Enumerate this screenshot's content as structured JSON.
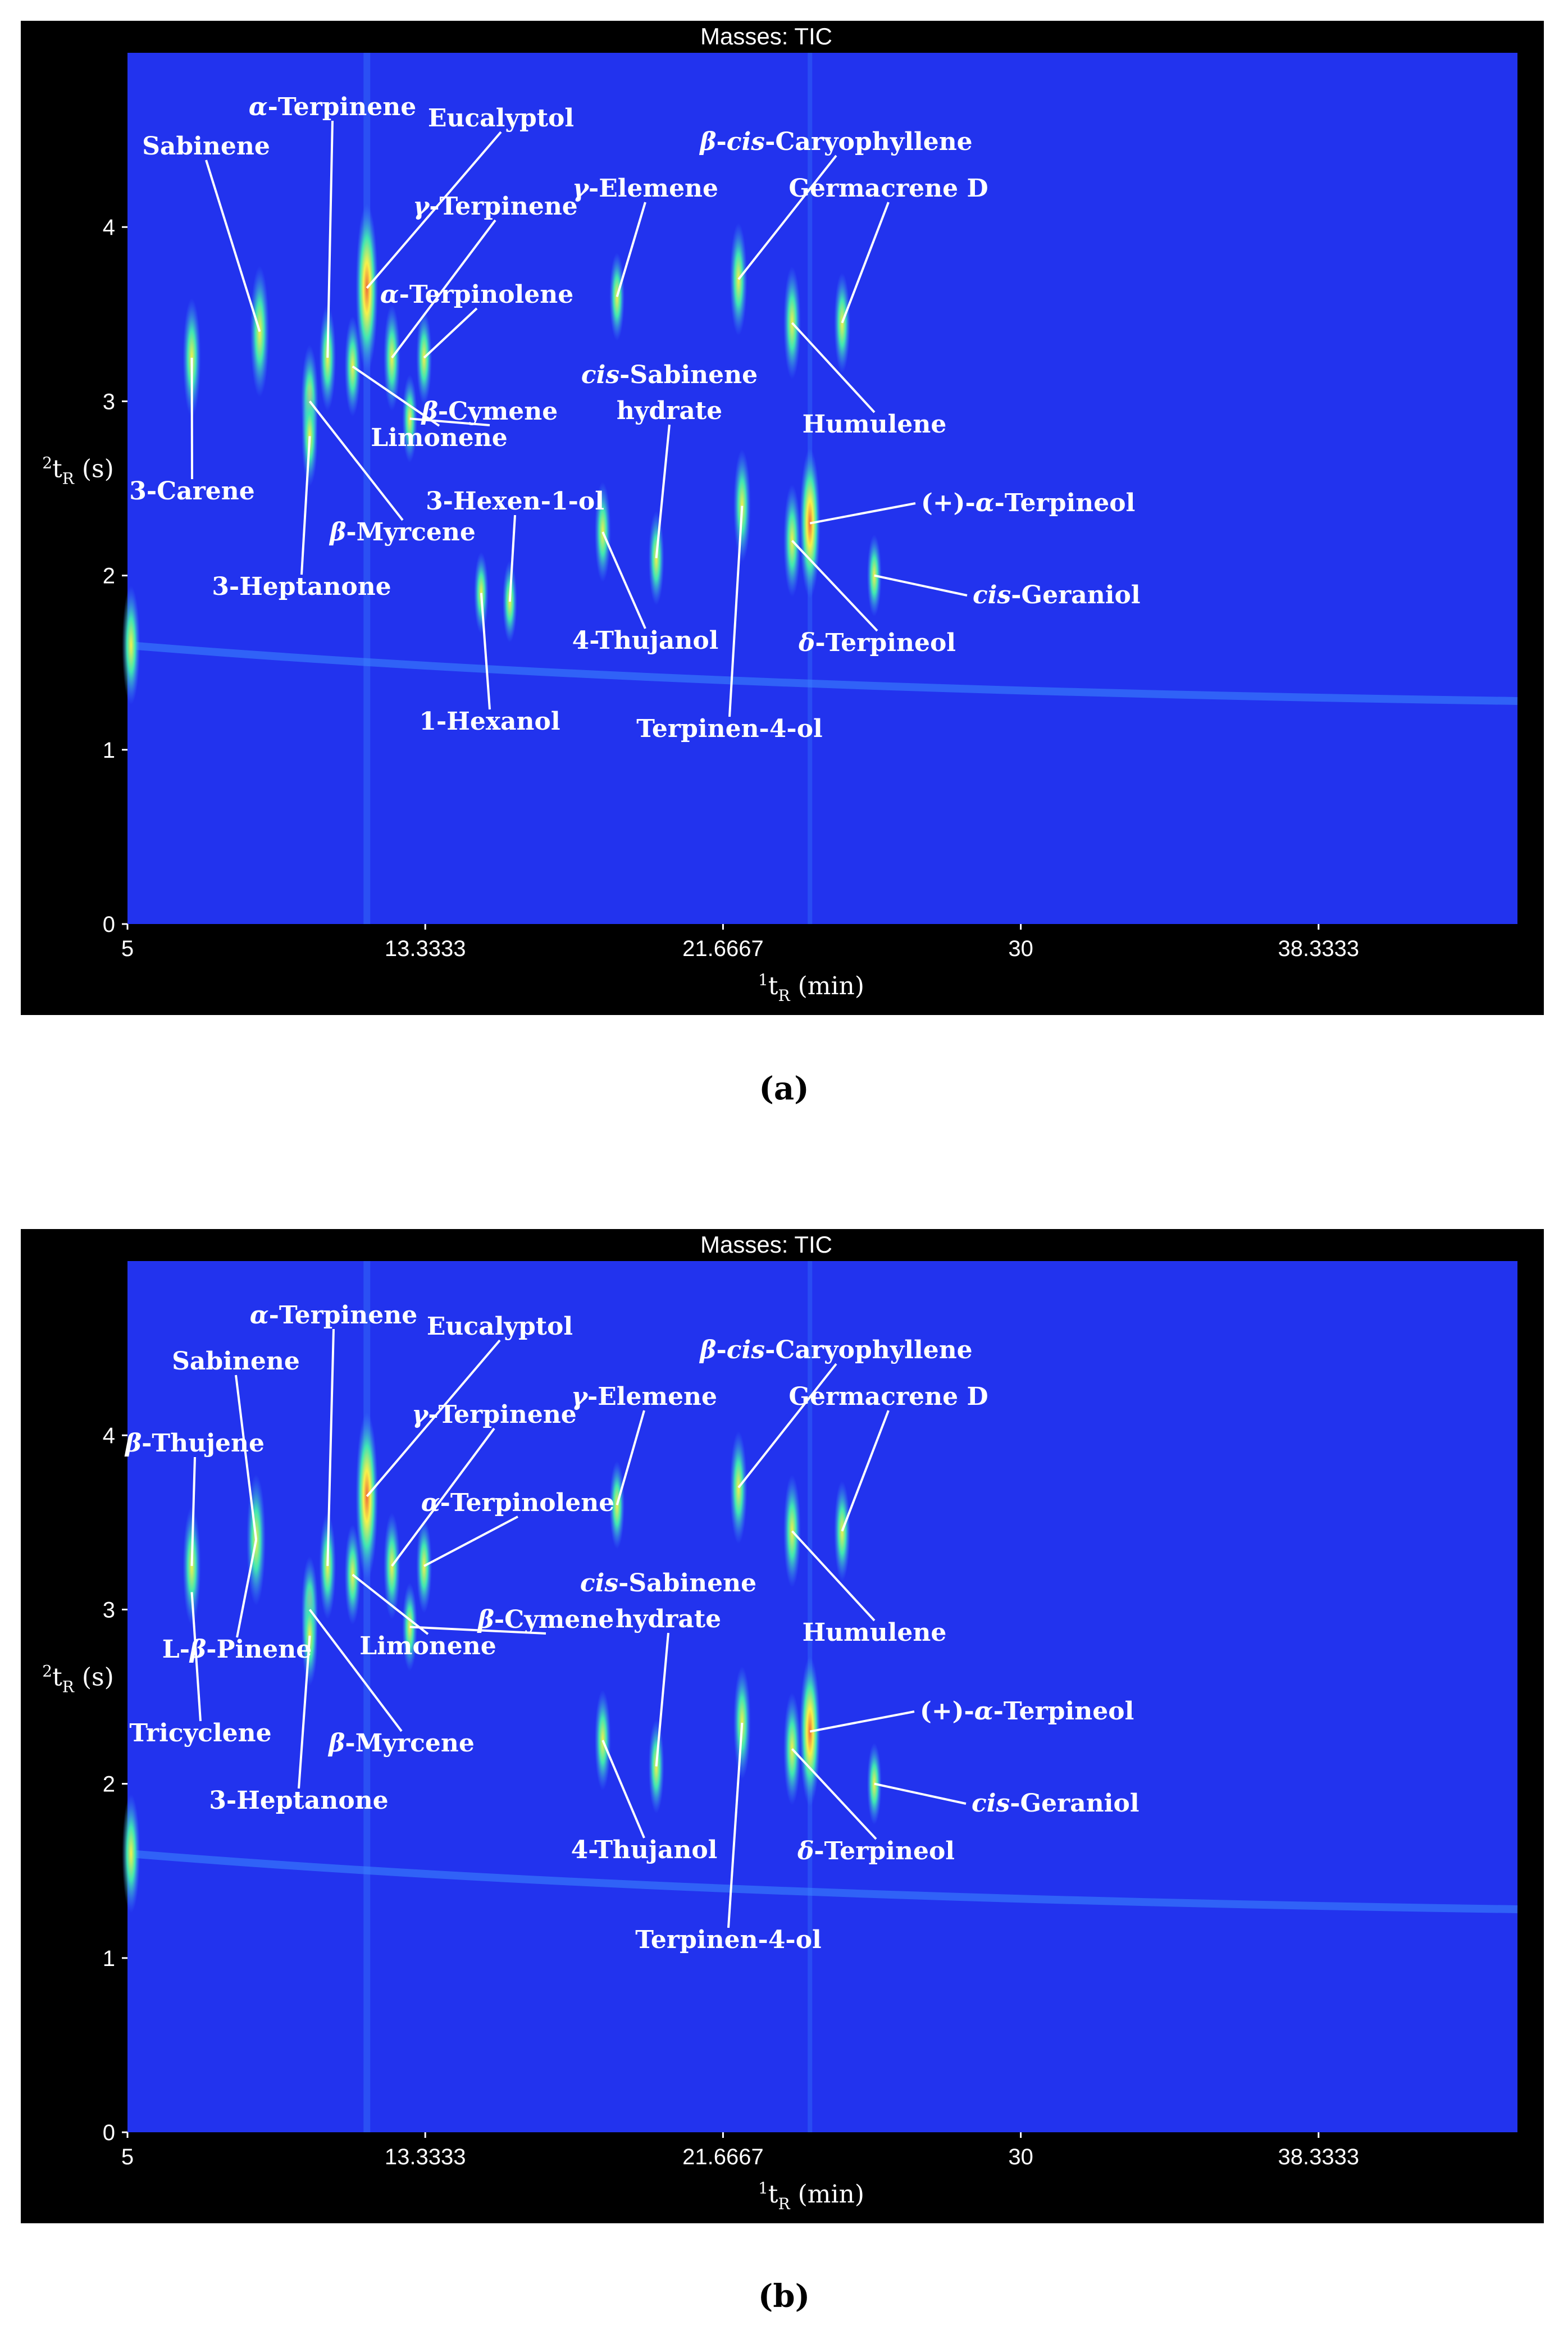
{
  "caption_a": "(a)",
  "caption_b": "(b)",
  "colors": {
    "background": "#2233ee",
    "frame": "#000000",
    "low": "#3d88ff",
    "mid": "#3fe6b4",
    "high": "#f8f04a",
    "peak": "#ef6a3a",
    "text": "#ffffff"
  },
  "chart_data": [
    {
      "type": "heatmap",
      "title": "Masses:  TIC",
      "xlabel": "1tR (min)",
      "ylabel": "2tR (s)",
      "xlim": [
        5,
        43.9
      ],
      "ylim": [
        0,
        5
      ],
      "xticks": [
        "5",
        "13.3333",
        "21.6667",
        "30",
        "38.3333"
      ],
      "yticks": [
        "0",
        "1",
        "2",
        "3",
        "4"
      ],
      "peaks": [
        {
          "x": 6.8,
          "y": 3.25,
          "i": 0.6
        },
        {
          "x": 8.7,
          "y": 3.4,
          "i": 0.7
        },
        {
          "x": 10.1,
          "y": 3.0,
          "i": 0.55
        },
        {
          "x": 10.1,
          "y": 2.8,
          "i": 0.45
        },
        {
          "x": 10.6,
          "y": 3.25,
          "i": 0.5
        },
        {
          "x": 11.3,
          "y": 3.2,
          "i": 0.45
        },
        {
          "x": 11.7,
          "y": 3.65,
          "i": 1.0
        },
        {
          "x": 12.4,
          "y": 3.25,
          "i": 0.5
        },
        {
          "x": 12.9,
          "y": 2.9,
          "i": 0.35
        },
        {
          "x": 13.3,
          "y": 3.25,
          "i": 0.4
        },
        {
          "x": 14.9,
          "y": 1.9,
          "i": 0.3
        },
        {
          "x": 15.7,
          "y": 1.85,
          "i": 0.3
        },
        {
          "x": 18.3,
          "y": 2.25,
          "i": 0.45
        },
        {
          "x": 18.7,
          "y": 3.6,
          "i": 0.35
        },
        {
          "x": 19.8,
          "y": 2.1,
          "i": 0.4
        },
        {
          "x": 22.1,
          "y": 3.7,
          "i": 0.55
        },
        {
          "x": 22.2,
          "y": 2.4,
          "i": 0.55
        },
        {
          "x": 23.6,
          "y": 2.2,
          "i": 0.55
        },
        {
          "x": 23.6,
          "y": 3.45,
          "i": 0.55
        },
        {
          "x": 24.1,
          "y": 2.3,
          "i": 0.85
        },
        {
          "x": 25.0,
          "y": 3.45,
          "i": 0.45
        },
        {
          "x": 25.9,
          "y": 2.0,
          "i": 0.3
        },
        {
          "x": 5.1,
          "y": 1.6,
          "i": 0.6
        }
      ],
      "annotations": [
        {
          "label": "Sabinene",
          "x": 8.7,
          "y": 3.4
        },
        {
          "label": "α-Terpinene",
          "x": 10.6,
          "y": 3.25
        },
        {
          "label": "Eucalyptol",
          "x": 11.7,
          "y": 3.65
        },
        {
          "label": "γ-Terpinene",
          "x": 12.4,
          "y": 3.25
        },
        {
          "label": "γ-Elemene",
          "x": 18.7,
          "y": 3.6
        },
        {
          "label": "β-cis-Caryophyllene",
          "x": 22.1,
          "y": 3.7
        },
        {
          "label": "Germacrene D",
          "x": 25.0,
          "y": 3.45
        },
        {
          "label": "α-Terpinolene",
          "x": 13.3,
          "y": 3.25
        },
        {
          "label": "cis-Sabinene hydrate",
          "x": 19.8,
          "y": 2.1
        },
        {
          "label": "β-Cymene",
          "x": 12.9,
          "y": 2.9
        },
        {
          "label": "Limonene",
          "x": 11.3,
          "y": 3.2
        },
        {
          "label": "Humulene",
          "x": 23.6,
          "y": 3.45
        },
        {
          "label": "3-Carene",
          "x": 6.8,
          "y": 3.25
        },
        {
          "label": "3-Hexen-1-ol",
          "x": 15.7,
          "y": 1.85
        },
        {
          "label": "(+)-α-Terpineol",
          "x": 24.1,
          "y": 2.3
        },
        {
          "label": "β-Myrcene",
          "x": 10.1,
          "y": 3.0
        },
        {
          "label": "3-Heptanone",
          "x": 10.1,
          "y": 2.8
        },
        {
          "label": "cis-Geraniol",
          "x": 25.9,
          "y": 2.0
        },
        {
          "label": "4-Thujanol",
          "x": 18.3,
          "y": 2.25
        },
        {
          "label": "δ-Terpineol",
          "x": 23.6,
          "y": 2.2
        },
        {
          "label": "1-Hexanol",
          "x": 14.9,
          "y": 1.9
        },
        {
          "label": "Terpinen-4-ol",
          "x": 22.2,
          "y": 2.4
        }
      ]
    },
    {
      "type": "heatmap",
      "title": "Masses:  TIC",
      "xlabel": "1tR (min)",
      "ylabel": "2tR (s)",
      "xlim": [
        5,
        43.9
      ],
      "ylim": [
        0,
        5
      ],
      "xticks": [
        "5",
        "13.3333",
        "21.6667",
        "30",
        "38.3333"
      ],
      "yticks": [
        "0",
        "1",
        "2",
        "3",
        "4"
      ],
      "peaks": [
        {
          "x": 6.8,
          "y": 3.25,
          "i": 0.6
        },
        {
          "x": 8.6,
          "y": 3.4,
          "i": 0.7
        },
        {
          "x": 10.1,
          "y": 3.0,
          "i": 0.5
        },
        {
          "x": 10.1,
          "y": 2.85,
          "i": 0.45
        },
        {
          "x": 10.6,
          "y": 3.25,
          "i": 0.5
        },
        {
          "x": 11.3,
          "y": 3.2,
          "i": 0.45
        },
        {
          "x": 11.7,
          "y": 3.65,
          "i": 1.0
        },
        {
          "x": 12.4,
          "y": 3.25,
          "i": 0.5
        },
        {
          "x": 12.9,
          "y": 2.9,
          "i": 0.35
        },
        {
          "x": 13.3,
          "y": 3.25,
          "i": 0.4
        },
        {
          "x": 18.3,
          "y": 2.25,
          "i": 0.45
        },
        {
          "x": 18.7,
          "y": 3.6,
          "i": 0.35
        },
        {
          "x": 19.8,
          "y": 2.1,
          "i": 0.4
        },
        {
          "x": 22.1,
          "y": 3.7,
          "i": 0.55
        },
        {
          "x": 22.2,
          "y": 2.35,
          "i": 0.55
        },
        {
          "x": 23.6,
          "y": 2.2,
          "i": 0.55
        },
        {
          "x": 23.6,
          "y": 3.45,
          "i": 0.55
        },
        {
          "x": 24.1,
          "y": 2.3,
          "i": 0.85
        },
        {
          "x": 25.0,
          "y": 3.45,
          "i": 0.45
        },
        {
          "x": 25.9,
          "y": 2.0,
          "i": 0.3
        },
        {
          "x": 5.1,
          "y": 1.6,
          "i": 0.6
        }
      ],
      "annotations": [
        {
          "label": "α-Terpinene",
          "x": 10.6,
          "y": 3.25
        },
        {
          "label": "Eucalyptol",
          "x": 11.7,
          "y": 3.65
        },
        {
          "label": "Sabinene",
          "x": 8.6,
          "y": 3.4
        },
        {
          "label": "γ-Terpinene",
          "x": 12.4,
          "y": 3.25
        },
        {
          "label": "γ-Elemene",
          "x": 18.7,
          "y": 3.6
        },
        {
          "label": "β-cis-Caryophyllene",
          "x": 22.1,
          "y": 3.7
        },
        {
          "label": "Germacrene D",
          "x": 25.0,
          "y": 3.45
        },
        {
          "label": "β-Thujene",
          "x": 6.8,
          "y": 3.25
        },
        {
          "label": "α-Terpinolene",
          "x": 13.3,
          "y": 3.25
        },
        {
          "label": "cis-Sabinene hydrate",
          "x": 19.8,
          "y": 2.1
        },
        {
          "label": "β-Cymene",
          "x": 12.9,
          "y": 2.9
        },
        {
          "label": "L-β-Pinene",
          "x": 8.6,
          "y": 3.4
        },
        {
          "label": "Limonene",
          "x": 11.3,
          "y": 3.2
        },
        {
          "label": "Humulene",
          "x": 23.6,
          "y": 3.45
        },
        {
          "label": "Tricyclene",
          "x": 6.8,
          "y": 3.1
        },
        {
          "label": "(+)-α-Terpineol",
          "x": 24.1,
          "y": 2.3
        },
        {
          "label": "β-Myrcene",
          "x": 10.1,
          "y": 3.0
        },
        {
          "label": "3-Heptanone",
          "x": 10.1,
          "y": 2.85
        },
        {
          "label": "cis-Geraniol",
          "x": 25.9,
          "y": 2.0
        },
        {
          "label": "4-Thujanol",
          "x": 18.3,
          "y": 2.25
        },
        {
          "label": "δ-Terpineol",
          "x": 23.6,
          "y": 2.2
        },
        {
          "label": "Terpinen-4-ol",
          "x": 22.2,
          "y": 2.35
        }
      ]
    }
  ]
}
